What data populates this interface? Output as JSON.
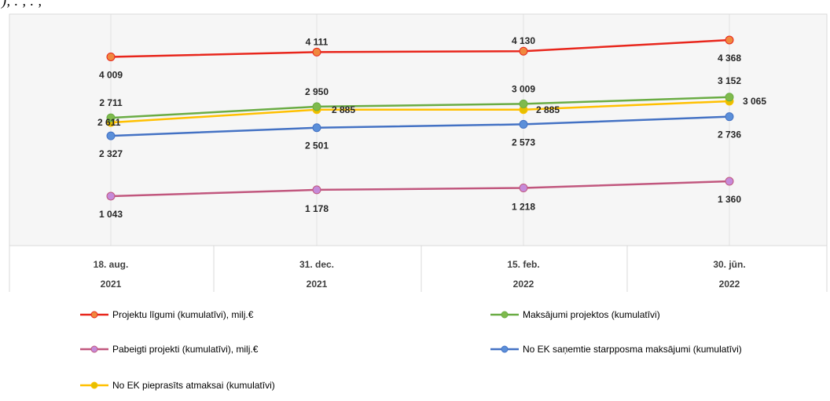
{
  "header_fragment": "),  .  ,  .  ,  ",
  "chart_data": {
    "type": "line",
    "categories": [
      {
        "date": "18. aug.",
        "year": "2021"
      },
      {
        "date": "31. dec.",
        "year": "2021"
      },
      {
        "date": "15. feb.",
        "year": "2022"
      },
      {
        "date": "30. jūn.",
        "year": "2022"
      }
    ],
    "series": [
      {
        "name": "Projektu līgumi (kumulatīvi), milj.€",
        "color": "#e8261c",
        "marker": "#f0883e",
        "values": [
          4009,
          4111,
          4130,
          4368
        ],
        "labels": [
          "4 009",
          "4 111",
          "4 130",
          "4 368"
        ]
      },
      {
        "name": "Maksājumi projektos (kumulatīvi)",
        "color": "#6aac44",
        "marker": "#7fba4d",
        "values": [
          2711,
          2950,
          3009,
          3152
        ],
        "labels": [
          "2 711",
          "2 950",
          "3 009",
          "3 152"
        ]
      },
      {
        "name": "Pabeigti projekti (kumulatīvi), milj.€",
        "color": "#c1577e",
        "marker": "#c58ad9",
        "values": [
          1043,
          1178,
          1218,
          1360
        ],
        "labels": [
          "1 043",
          "1 178",
          "1 218",
          "1 360"
        ]
      },
      {
        "name": "No EK saņemtie starpposma maksājumi (kumulatīvi)",
        "color": "#4472c4",
        "marker": "#5b8fd9",
        "values": [
          2327,
          2501,
          2573,
          2736
        ],
        "labels": [
          "2 327",
          "2 501",
          "2 573",
          "2 736"
        ]
      },
      {
        "name": "No EK pieprasīts atmaksai (kumulatīvi)",
        "color": "#ffc000",
        "marker": "#e5c000",
        "values": [
          2611,
          2885,
          2885,
          3065
        ],
        "labels": [
          "2 611",
          "2 885",
          "2 885",
          "3 065"
        ]
      }
    ],
    "xlabel": "",
    "ylabel": "",
    "legend_position": "bottom",
    "grid": "vertical"
  }
}
